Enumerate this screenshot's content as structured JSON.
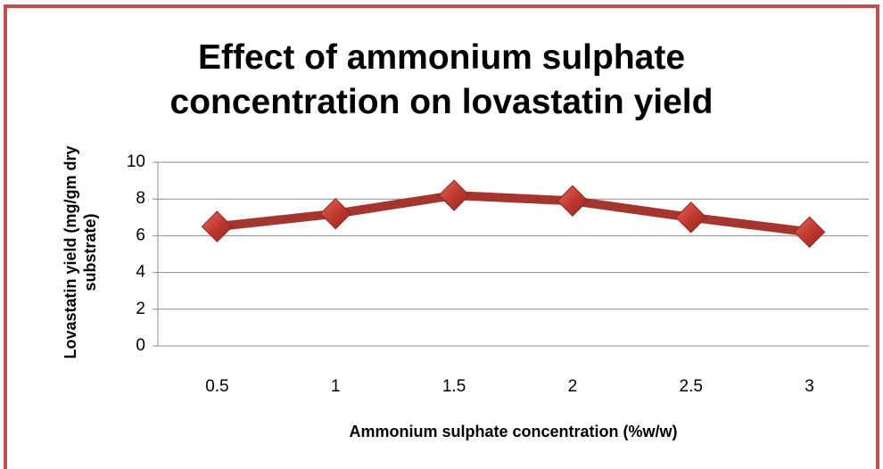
{
  "chart_data": {
    "type": "line",
    "title": "Effect of ammonium sulphate concentration on lovastatin yield",
    "x_label": "Ammonium sulphate concentration (%w/w)",
    "y_label": "Lovastatin yield (mg/gm dry substrate)",
    "categories": [
      "0.5",
      "1",
      "1.5",
      "2",
      "2.5",
      "3"
    ],
    "series": [
      {
        "name": "Lovastatin yield",
        "color": "#a5362f",
        "values": [
          6.5,
          7.2,
          8.2,
          7.9,
          7.0,
          6.2
        ]
      }
    ],
    "ylim": [
      0,
      10
    ],
    "yticks": [
      0,
      2,
      4,
      6,
      8,
      10
    ],
    "grid": true
  }
}
